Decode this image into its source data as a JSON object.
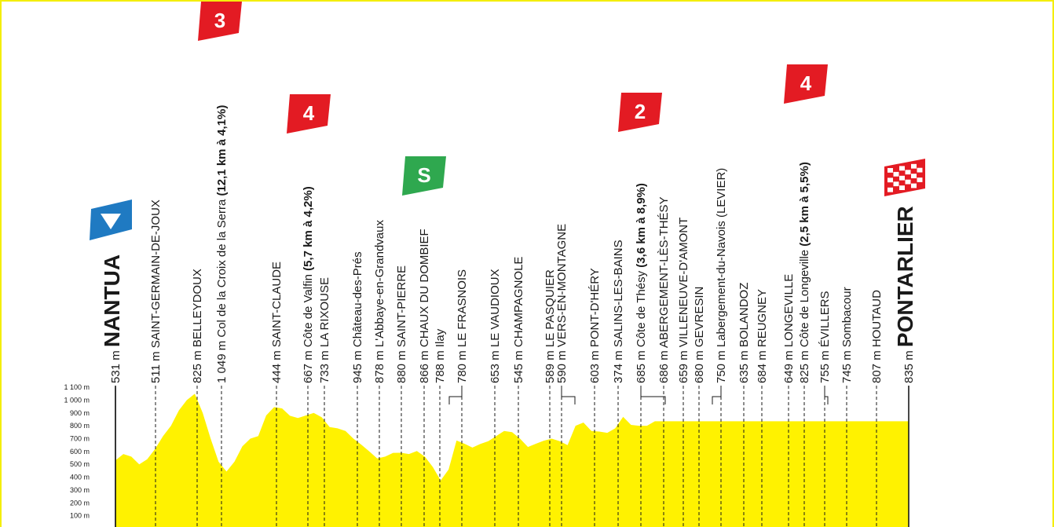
{
  "colors": {
    "profile_fill": "#fff200",
    "frame": "#f4ee0a",
    "climb_badge": "#e31b23",
    "sprint_badge": "#2fa84f",
    "start_badge": "#1f7ac2",
    "text": "#1a1a1a"
  },
  "chart_data": {
    "type": "area",
    "title": "",
    "xlabel": "",
    "ylabel": "",
    "ylim": [
      0,
      1100
    ],
    "y_ticks": [
      "100 m",
      "200 m",
      "300 m",
      "400 m",
      "500 m",
      "600 m",
      "700 m",
      "800 m",
      "900 m",
      "1 000 m",
      "1 100 m"
    ],
    "y_tick_values": [
      100,
      200,
      300,
      400,
      500,
      600,
      700,
      800,
      900,
      1000,
      1100
    ],
    "x": [
      0,
      1,
      2,
      3,
      4,
      5,
      6,
      7,
      8,
      9,
      10,
      11,
      12,
      13,
      14,
      15,
      16,
      17,
      18,
      19,
      20,
      21,
      22,
      23,
      24,
      25,
      26,
      27,
      28,
      29,
      30,
      31,
      32,
      33,
      34,
      35,
      36,
      37,
      38,
      39,
      40,
      41,
      42,
      43,
      44,
      45,
      46,
      47,
      48,
      49,
      50,
      51,
      52,
      53,
      54,
      55,
      56,
      57,
      58,
      59,
      60,
      61,
      62,
      63,
      64,
      65,
      66,
      67,
      68,
      69,
      70,
      71,
      72,
      73,
      74,
      75,
      76,
      77,
      78,
      79,
      80,
      81,
      82,
      83,
      84,
      85,
      86,
      87,
      88,
      89,
      90,
      91,
      92,
      93,
      94,
      95,
      96,
      97,
      98,
      99,
      100
    ],
    "elevation": [
      531,
      580,
      560,
      500,
      540,
      620,
      720,
      800,
      920,
      1000,
      1049,
      900,
      700,
      520,
      444,
      520,
      640,
      700,
      720,
      880,
      945,
      935,
      878,
      860,
      880,
      900,
      866,
      790,
      780,
      760,
      700,
      653,
      600,
      545,
      560,
      589,
      590,
      580,
      603,
      560,
      480,
      374,
      460,
      685,
      660,
      630,
      659,
      680,
      720,
      760,
      750,
      700,
      635,
      660,
      684,
      700,
      680,
      649,
      800,
      825,
      760,
      755,
      745,
      780,
      870,
      807,
      800,
      800,
      835,
      835,
      835,
      835,
      835,
      835,
      835,
      835,
      835,
      835,
      835,
      835,
      835,
      835,
      835,
      835,
      835,
      835,
      835,
      835,
      835,
      835,
      835,
      835,
      835,
      835,
      835,
      835,
      835,
      835,
      835,
      835,
      835
    ],
    "points": [
      {
        "alt": "531 m",
        "name": "NANTUA",
        "extra": "",
        "kind": "start"
      },
      {
        "alt": "511 m",
        "name": "SAINT-GERMAIN-DE-JOUX",
        "extra": "",
        "kind": "town"
      },
      {
        "alt": "825 m",
        "name": "BELLEYDOUX",
        "extra": "",
        "kind": "town"
      },
      {
        "alt": "1 049 m",
        "name": "Col de la Croix de la Serra",
        "extra": "(12,1 km à 4,1%)",
        "kind": "climb"
      },
      {
        "alt": "444 m",
        "name": "SAINT-CLAUDE",
        "extra": "",
        "kind": "town"
      },
      {
        "alt": "667 m",
        "name": "Côte de Valfin",
        "extra": "(5,7 km à 4,2%)",
        "kind": "climb"
      },
      {
        "alt": "733 m",
        "name": "LA RIXOUSE",
        "extra": "",
        "kind": "town"
      },
      {
        "alt": "945 m",
        "name": "Château-des-Prés",
        "extra": "",
        "kind": "place"
      },
      {
        "alt": "878 m",
        "name": "L'Abbaye-en-Grandvaux",
        "extra": "",
        "kind": "place"
      },
      {
        "alt": "880 m",
        "name": "SAINT-PIERRE",
        "extra": "",
        "kind": "town"
      },
      {
        "alt": "866 m",
        "name": "CHAUX DU DOMBIEF",
        "extra": "",
        "kind": "town"
      },
      {
        "alt": "788 m",
        "name": "Ilay",
        "extra": "",
        "kind": "sprint"
      },
      {
        "alt": "780 m",
        "name": "LE FRASNOIS",
        "extra": "",
        "kind": "town"
      },
      {
        "alt": "653 m",
        "name": "LE VAUDIOUX",
        "extra": "",
        "kind": "town"
      },
      {
        "alt": "545 m",
        "name": "CHAMPAGNOLE",
        "extra": "",
        "kind": "town"
      },
      {
        "alt": "589 m",
        "name": "LE PASQUIER",
        "extra": "",
        "kind": "town"
      },
      {
        "alt": "590 m",
        "name": "VERS-EN-MONTAGNE",
        "extra": "",
        "kind": "town"
      },
      {
        "alt": "603 m",
        "name": "PONT-D'HÉRY",
        "extra": "",
        "kind": "town"
      },
      {
        "alt": "374 m",
        "name": "SALINS-LES-BAINS",
        "extra": "",
        "kind": "town"
      },
      {
        "alt": "685 m",
        "name": "Côte de Thésy",
        "extra": "(3,6 km à 8,9%)",
        "kind": "climb"
      },
      {
        "alt": "686 m",
        "name": "ABERGEMENT-LÈS-THÉSY",
        "extra": "",
        "kind": "town"
      },
      {
        "alt": "659 m",
        "name": "VILLENEUVE-D'AMONT",
        "extra": "",
        "kind": "town"
      },
      {
        "alt": "680 m",
        "name": "GEVRESIN",
        "extra": "",
        "kind": "town"
      },
      {
        "alt": "750 m",
        "name": "Labergement-du-Navois (LEVIER)",
        "extra": "",
        "kind": "place"
      },
      {
        "alt": "635 m",
        "name": "BOLANDOZ",
        "extra": "",
        "kind": "town"
      },
      {
        "alt": "684 m",
        "name": "REUGNEY",
        "extra": "",
        "kind": "town"
      },
      {
        "alt": "649 m",
        "name": "LONGEVILLE",
        "extra": "",
        "kind": "town"
      },
      {
        "alt": "825 m",
        "name": "Côte de Longeville",
        "extra": "(2,5 km à 5,5%)",
        "kind": "climb"
      },
      {
        "alt": "755 m",
        "name": "ÉVILLERS",
        "extra": "",
        "kind": "town"
      },
      {
        "alt": "745 m",
        "name": "Sombacour",
        "extra": "",
        "kind": "place"
      },
      {
        "alt": "807 m",
        "name": "HOUTAUD",
        "extra": "",
        "kind": "town"
      },
      {
        "alt": "835 m",
        "name": "PONTARLIER",
        "extra": "",
        "kind": "finish"
      }
    ],
    "badges": [
      {
        "label": "3",
        "kind": "climb"
      },
      {
        "label": "4",
        "kind": "climb"
      },
      {
        "label": "S",
        "kind": "sprint"
      },
      {
        "label": "2",
        "kind": "climb"
      },
      {
        "label": "4",
        "kind": "climb"
      }
    ]
  }
}
